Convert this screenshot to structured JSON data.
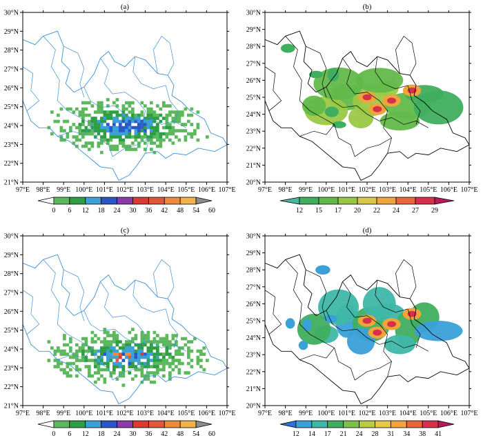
{
  "panels": [
    {
      "label": "(a)",
      "x_ticks": [
        "97°E",
        "98°E",
        "99°E",
        "100°E",
        "101°E",
        "102°E",
        "103°E",
        "104°E",
        "105°E",
        "106°E",
        "107°E"
      ],
      "y_ticks": [
        "21°N",
        "22°N",
        "23°N",
        "24°N",
        "25°N",
        "26°N",
        "27°N",
        "28°N",
        "29°N",
        "30°N"
      ],
      "boundary_color": "#3b8fd6",
      "style": "pixel",
      "colorbar": {
        "labels": [
          "0",
          "6",
          "12",
          "18",
          "24",
          "30",
          "36",
          "42",
          "48",
          "54",
          "60"
        ],
        "colors": [
          "#ffffff",
          "#5cb85c",
          "#2e9e44",
          "#3aa0d8",
          "#2a56c8",
          "#8b3aa8",
          "#d93a32",
          "#e0573a",
          "#ef8a3c",
          "#f2b24a",
          "#8c8c8c"
        ]
      }
    },
    {
      "label": "(b)",
      "x_ticks": [
        "97°E",
        "98°E",
        "99°E",
        "100°E",
        "101°E",
        "102°E",
        "103°E",
        "104°E",
        "105°E",
        "106°E",
        "107°E"
      ],
      "y_ticks": [
        "20°N",
        "21°N",
        "22°N",
        "23°N",
        "24°N",
        "25°N",
        "26°N",
        "27°N",
        "28°N",
        "29°N",
        "30°N"
      ],
      "boundary_color": "#000000",
      "style": "smooth",
      "colorbar": {
        "labels": [
          "12",
          "15",
          "17",
          "20",
          "22",
          "24",
          "27",
          "29"
        ],
        "colors": [
          "#4db3a2",
          "#3fae5f",
          "#62b94a",
          "#9ac845",
          "#d9c84a",
          "#f0a53c",
          "#e8663a",
          "#d7304a",
          "#b8195a"
        ]
      }
    },
    {
      "label": "(c)",
      "x_ticks": [
        "97°E",
        "98°E",
        "99°E",
        "100°E",
        "101°E",
        "102°E",
        "103°E",
        "104°E",
        "105°E",
        "106°E",
        "107°E"
      ],
      "y_ticks": [
        "21°N",
        "22°N",
        "23°N",
        "24°N",
        "25°N",
        "26°N",
        "27°N",
        "28°N",
        "29°N",
        "30°N"
      ],
      "boundary_color": "#3b8fd6",
      "style": "pixel",
      "colorbar": {
        "labels": [
          "0",
          "6",
          "12",
          "18",
          "24",
          "30",
          "36",
          "42",
          "48",
          "54",
          "60"
        ],
        "colors": [
          "#ffffff",
          "#5cb85c",
          "#2e9e44",
          "#3aa0d8",
          "#2a56c8",
          "#8b3aa8",
          "#d93a32",
          "#e0573a",
          "#ef8a3c",
          "#f2b24a",
          "#8c8c8c"
        ]
      }
    },
    {
      "label": "(d)",
      "x_ticks": [
        "97°E",
        "98°E",
        "99°E",
        "100°E",
        "101°E",
        "102°E",
        "103°E",
        "104°E",
        "105°E",
        "106°E",
        "107°E"
      ],
      "y_ticks": [
        "20°N",
        "21°N",
        "22°N",
        "23°N",
        "24°N",
        "25°N",
        "26°N",
        "27°N",
        "28°N",
        "29°N",
        "30°N"
      ],
      "boundary_color": "#000000",
      "style": "smooth",
      "colorbar": {
        "labels": [
          "12",
          "14",
          "17",
          "21",
          "24",
          "28",
          "31",
          "34",
          "38",
          "41"
        ],
        "colors": [
          "#2e6fd6",
          "#3aa0d8",
          "#3fb7a8",
          "#3fae5f",
          "#7cc148",
          "#b8cc45",
          "#e6c84a",
          "#f0a53c",
          "#e8663a",
          "#d7304a",
          "#b8195a"
        ]
      }
    }
  ]
}
